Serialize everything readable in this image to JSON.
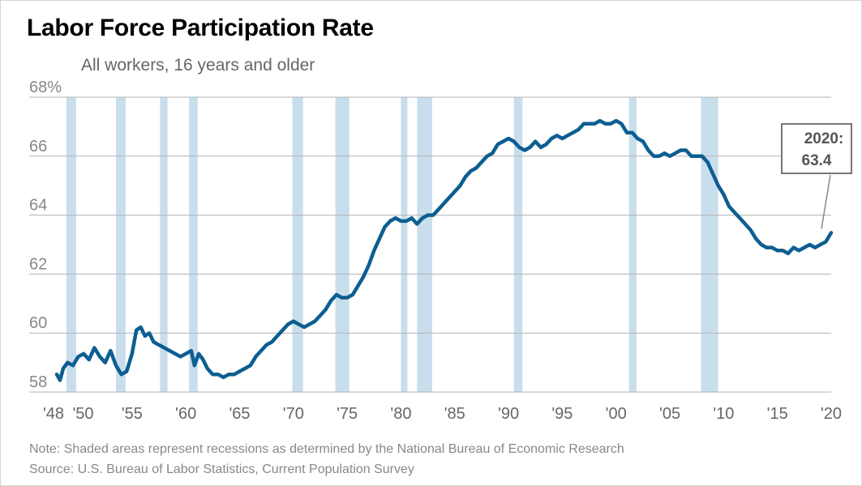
{
  "title": "Labor Force Participation Rate",
  "subtitle": "All workers, 16 years and older",
  "note": "Note: Shaded areas represent recessions as determined by the National Bureau of Economic Research",
  "source": "Source: U.S. Bureau of Labor Statistics, Current Population Survey",
  "callout": {
    "line1": "2020:",
    "line2": "63.4"
  },
  "colors": {
    "line": "#0d5e91",
    "recession": "#c9deec",
    "grid": "#b3b3b3",
    "text": "#666666"
  },
  "chart_data": {
    "type": "line",
    "title": "Labor Force Participation Rate",
    "subtitle": "All workers, 16 years and older",
    "xlabel": "",
    "ylabel": "",
    "xlim": [
      1948,
      2020
    ],
    "ylim": [
      58,
      68
    ],
    "y_ticks": [
      {
        "value": 68,
        "label": "68%"
      },
      {
        "value": 66,
        "label": "66"
      },
      {
        "value": 64,
        "label": "64"
      },
      {
        "value": 62,
        "label": "62"
      },
      {
        "value": 60,
        "label": "60"
      },
      {
        "value": 58,
        "label": "58"
      }
    ],
    "x_ticks": [
      {
        "value": 1948,
        "label": "'48"
      },
      {
        "value": 1950,
        "label": "'50"
      },
      {
        "value": 1955,
        "label": "'55"
      },
      {
        "value": 1960,
        "label": "'60"
      },
      {
        "value": 1965,
        "label": "'65"
      },
      {
        "value": 1970,
        "label": "'70"
      },
      {
        "value": 1975,
        "label": "'75"
      },
      {
        "value": 1980,
        "label": "'80"
      },
      {
        "value": 1985,
        "label": "'85"
      },
      {
        "value": 1990,
        "label": "'90"
      },
      {
        "value": 1995,
        "label": "'95"
      },
      {
        "value": 2000,
        "label": "'00"
      },
      {
        "value": 2005,
        "label": "'05"
      },
      {
        "value": 2010,
        "label": "'10"
      },
      {
        "value": 2015,
        "label": "'15"
      },
      {
        "value": 2020,
        "label": "'20"
      }
    ],
    "recessions": [
      [
        1948.9,
        1949.8
      ],
      [
        1953.5,
        1954.4
      ],
      [
        1957.6,
        1958.3
      ],
      [
        1960.3,
        1961.1
      ],
      [
        1969.9,
        1970.9
      ],
      [
        1973.9,
        1975.2
      ],
      [
        1980.0,
        1980.6
      ],
      [
        1981.5,
        1982.9
      ],
      [
        1990.5,
        1991.3
      ],
      [
        2001.2,
        2001.9
      ],
      [
        2007.9,
        2009.5
      ]
    ],
    "series": [
      {
        "name": "Labor Force Participation Rate",
        "x": [
          1948.0,
          1948.3,
          1948.6,
          1949.0,
          1949.5,
          1950.0,
          1950.5,
          1951.0,
          1951.5,
          1952.0,
          1952.5,
          1953.0,
          1953.5,
          1954.0,
          1954.5,
          1955.0,
          1955.4,
          1955.8,
          1956.2,
          1956.6,
          1957.0,
          1957.5,
          1958.0,
          1958.5,
          1959.0,
          1959.5,
          1960.0,
          1960.5,
          1960.8,
          1961.2,
          1961.6,
          1962.0,
          1962.5,
          1963.0,
          1963.5,
          1964.0,
          1964.5,
          1965.0,
          1965.5,
          1966.0,
          1966.5,
          1967.0,
          1967.5,
          1968.0,
          1968.5,
          1969.0,
          1969.5,
          1970.0,
          1970.5,
          1971.0,
          1971.5,
          1972.0,
          1972.5,
          1973.0,
          1973.5,
          1974.0,
          1974.5,
          1975.0,
          1975.5,
          1976.0,
          1976.5,
          1977.0,
          1977.5,
          1978.0,
          1978.5,
          1979.0,
          1979.5,
          1980.0,
          1980.5,
          1981.0,
          1981.5,
          1982.0,
          1982.5,
          1983.0,
          1983.5,
          1984.0,
          1984.5,
          1985.0,
          1985.5,
          1986.0,
          1986.5,
          1987.0,
          1987.5,
          1988.0,
          1988.5,
          1989.0,
          1989.5,
          1990.0,
          1990.5,
          1991.0,
          1991.5,
          1992.0,
          1992.5,
          1993.0,
          1993.5,
          1994.0,
          1994.5,
          1995.0,
          1995.5,
          1996.0,
          1996.5,
          1997.0,
          1997.5,
          1998.0,
          1998.5,
          1999.0,
          1999.5,
          2000.0,
          2000.5,
          2001.0,
          2001.5,
          2002.0,
          2002.5,
          2003.0,
          2003.5,
          2004.0,
          2004.5,
          2005.0,
          2005.5,
          2006.0,
          2006.5,
          2007.0,
          2007.5,
          2008.0,
          2008.5,
          2009.0,
          2009.5,
          2010.0,
          2010.5,
          2011.0,
          2011.5,
          2012.0,
          2012.5,
          2013.0,
          2013.5,
          2014.0,
          2014.5,
          2015.0,
          2015.5,
          2016.0,
          2016.5,
          2017.0,
          2017.5,
          2018.0,
          2018.5,
          2019.0,
          2019.5,
          2020.0
        ],
        "values": [
          58.6,
          58.4,
          58.8,
          59.0,
          58.9,
          59.2,
          59.3,
          59.1,
          59.5,
          59.2,
          59.0,
          59.4,
          58.9,
          58.6,
          58.7,
          59.3,
          60.1,
          60.2,
          59.9,
          60.0,
          59.7,
          59.6,
          59.5,
          59.4,
          59.3,
          59.2,
          59.3,
          59.4,
          58.9,
          59.3,
          59.1,
          58.8,
          58.6,
          58.6,
          58.5,
          58.6,
          58.6,
          58.7,
          58.8,
          58.9,
          59.2,
          59.4,
          59.6,
          59.7,
          59.9,
          60.1,
          60.3,
          60.4,
          60.3,
          60.2,
          60.3,
          60.4,
          60.6,
          60.8,
          61.1,
          61.3,
          61.2,
          61.2,
          61.3,
          61.6,
          61.9,
          62.3,
          62.8,
          63.2,
          63.6,
          63.8,
          63.9,
          63.8,
          63.8,
          63.9,
          63.7,
          63.9,
          64.0,
          64.0,
          64.2,
          64.4,
          64.6,
          64.8,
          65.0,
          65.3,
          65.5,
          65.6,
          65.8,
          66.0,
          66.1,
          66.4,
          66.5,
          66.6,
          66.5,
          66.3,
          66.2,
          66.3,
          66.5,
          66.3,
          66.4,
          66.6,
          66.7,
          66.6,
          66.7,
          66.8,
          66.9,
          67.1,
          67.1,
          67.1,
          67.2,
          67.1,
          67.1,
          67.2,
          67.1,
          66.8,
          66.8,
          66.6,
          66.5,
          66.2,
          66.0,
          66.0,
          66.1,
          66.0,
          66.1,
          66.2,
          66.2,
          66.0,
          66.0,
          66.0,
          65.8,
          65.4,
          65.0,
          64.7,
          64.3,
          64.1,
          63.9,
          63.7,
          63.5,
          63.2,
          63.0,
          62.9,
          62.9,
          62.8,
          62.8,
          62.7,
          62.9,
          62.8,
          62.9,
          63.0,
          62.9,
          63.0,
          63.1,
          63.4
        ]
      }
    ],
    "annotation": {
      "text": "2020: 63.4",
      "x": 2020,
      "y": 63.4
    }
  }
}
